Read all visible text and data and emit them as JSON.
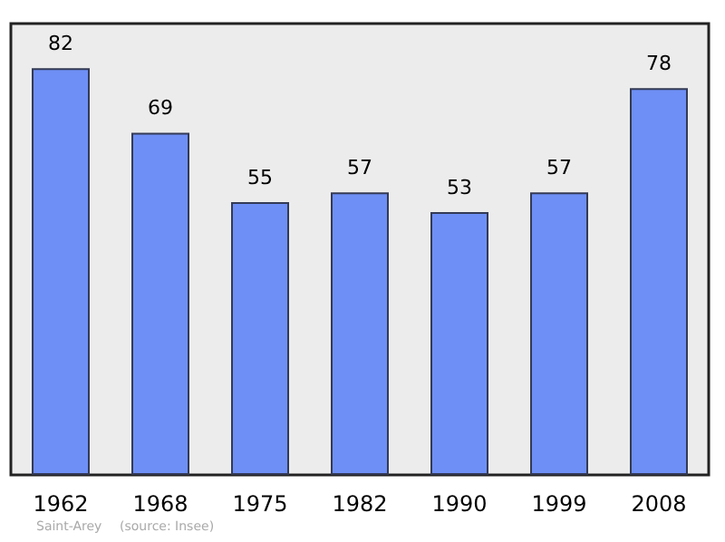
{
  "chart_data": {
    "type": "bar",
    "categories": [
      "1962",
      "1968",
      "1975",
      "1982",
      "1990",
      "1999",
      "2008"
    ],
    "values": [
      82,
      69,
      55,
      57,
      53,
      57,
      78
    ],
    "color": "#6e8ff5",
    "data_labels": true,
    "annotations": [
      "Saint-Arey",
      "(source: Insee)"
    ]
  }
}
